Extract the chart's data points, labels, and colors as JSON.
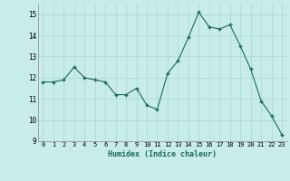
{
  "x": [
    0,
    1,
    2,
    3,
    4,
    5,
    6,
    7,
    8,
    9,
    10,
    11,
    12,
    13,
    14,
    15,
    16,
    17,
    18,
    19,
    20,
    21,
    22,
    23
  ],
  "y": [
    11.8,
    11.8,
    11.9,
    12.5,
    12.0,
    11.9,
    11.8,
    11.2,
    11.2,
    11.5,
    10.7,
    10.5,
    12.2,
    12.8,
    13.9,
    15.1,
    14.4,
    14.3,
    14.5,
    13.5,
    12.4,
    10.9,
    10.2,
    9.3
  ],
  "xlabel": "Humidex (Indice chaleur)",
  "xlim": [
    -0.5,
    23.5
  ],
  "ylim": [
    9,
    15.5
  ],
  "yticks": [
    9,
    10,
    11,
    12,
    13,
    14,
    15
  ],
  "xticks": [
    0,
    1,
    2,
    3,
    4,
    5,
    6,
    7,
    8,
    9,
    10,
    11,
    12,
    13,
    14,
    15,
    16,
    17,
    18,
    19,
    20,
    21,
    22,
    23
  ],
  "bg_color": "#c8ece8",
  "line_color": "#1a6b5a",
  "grid_color": "#a8d8d0"
}
